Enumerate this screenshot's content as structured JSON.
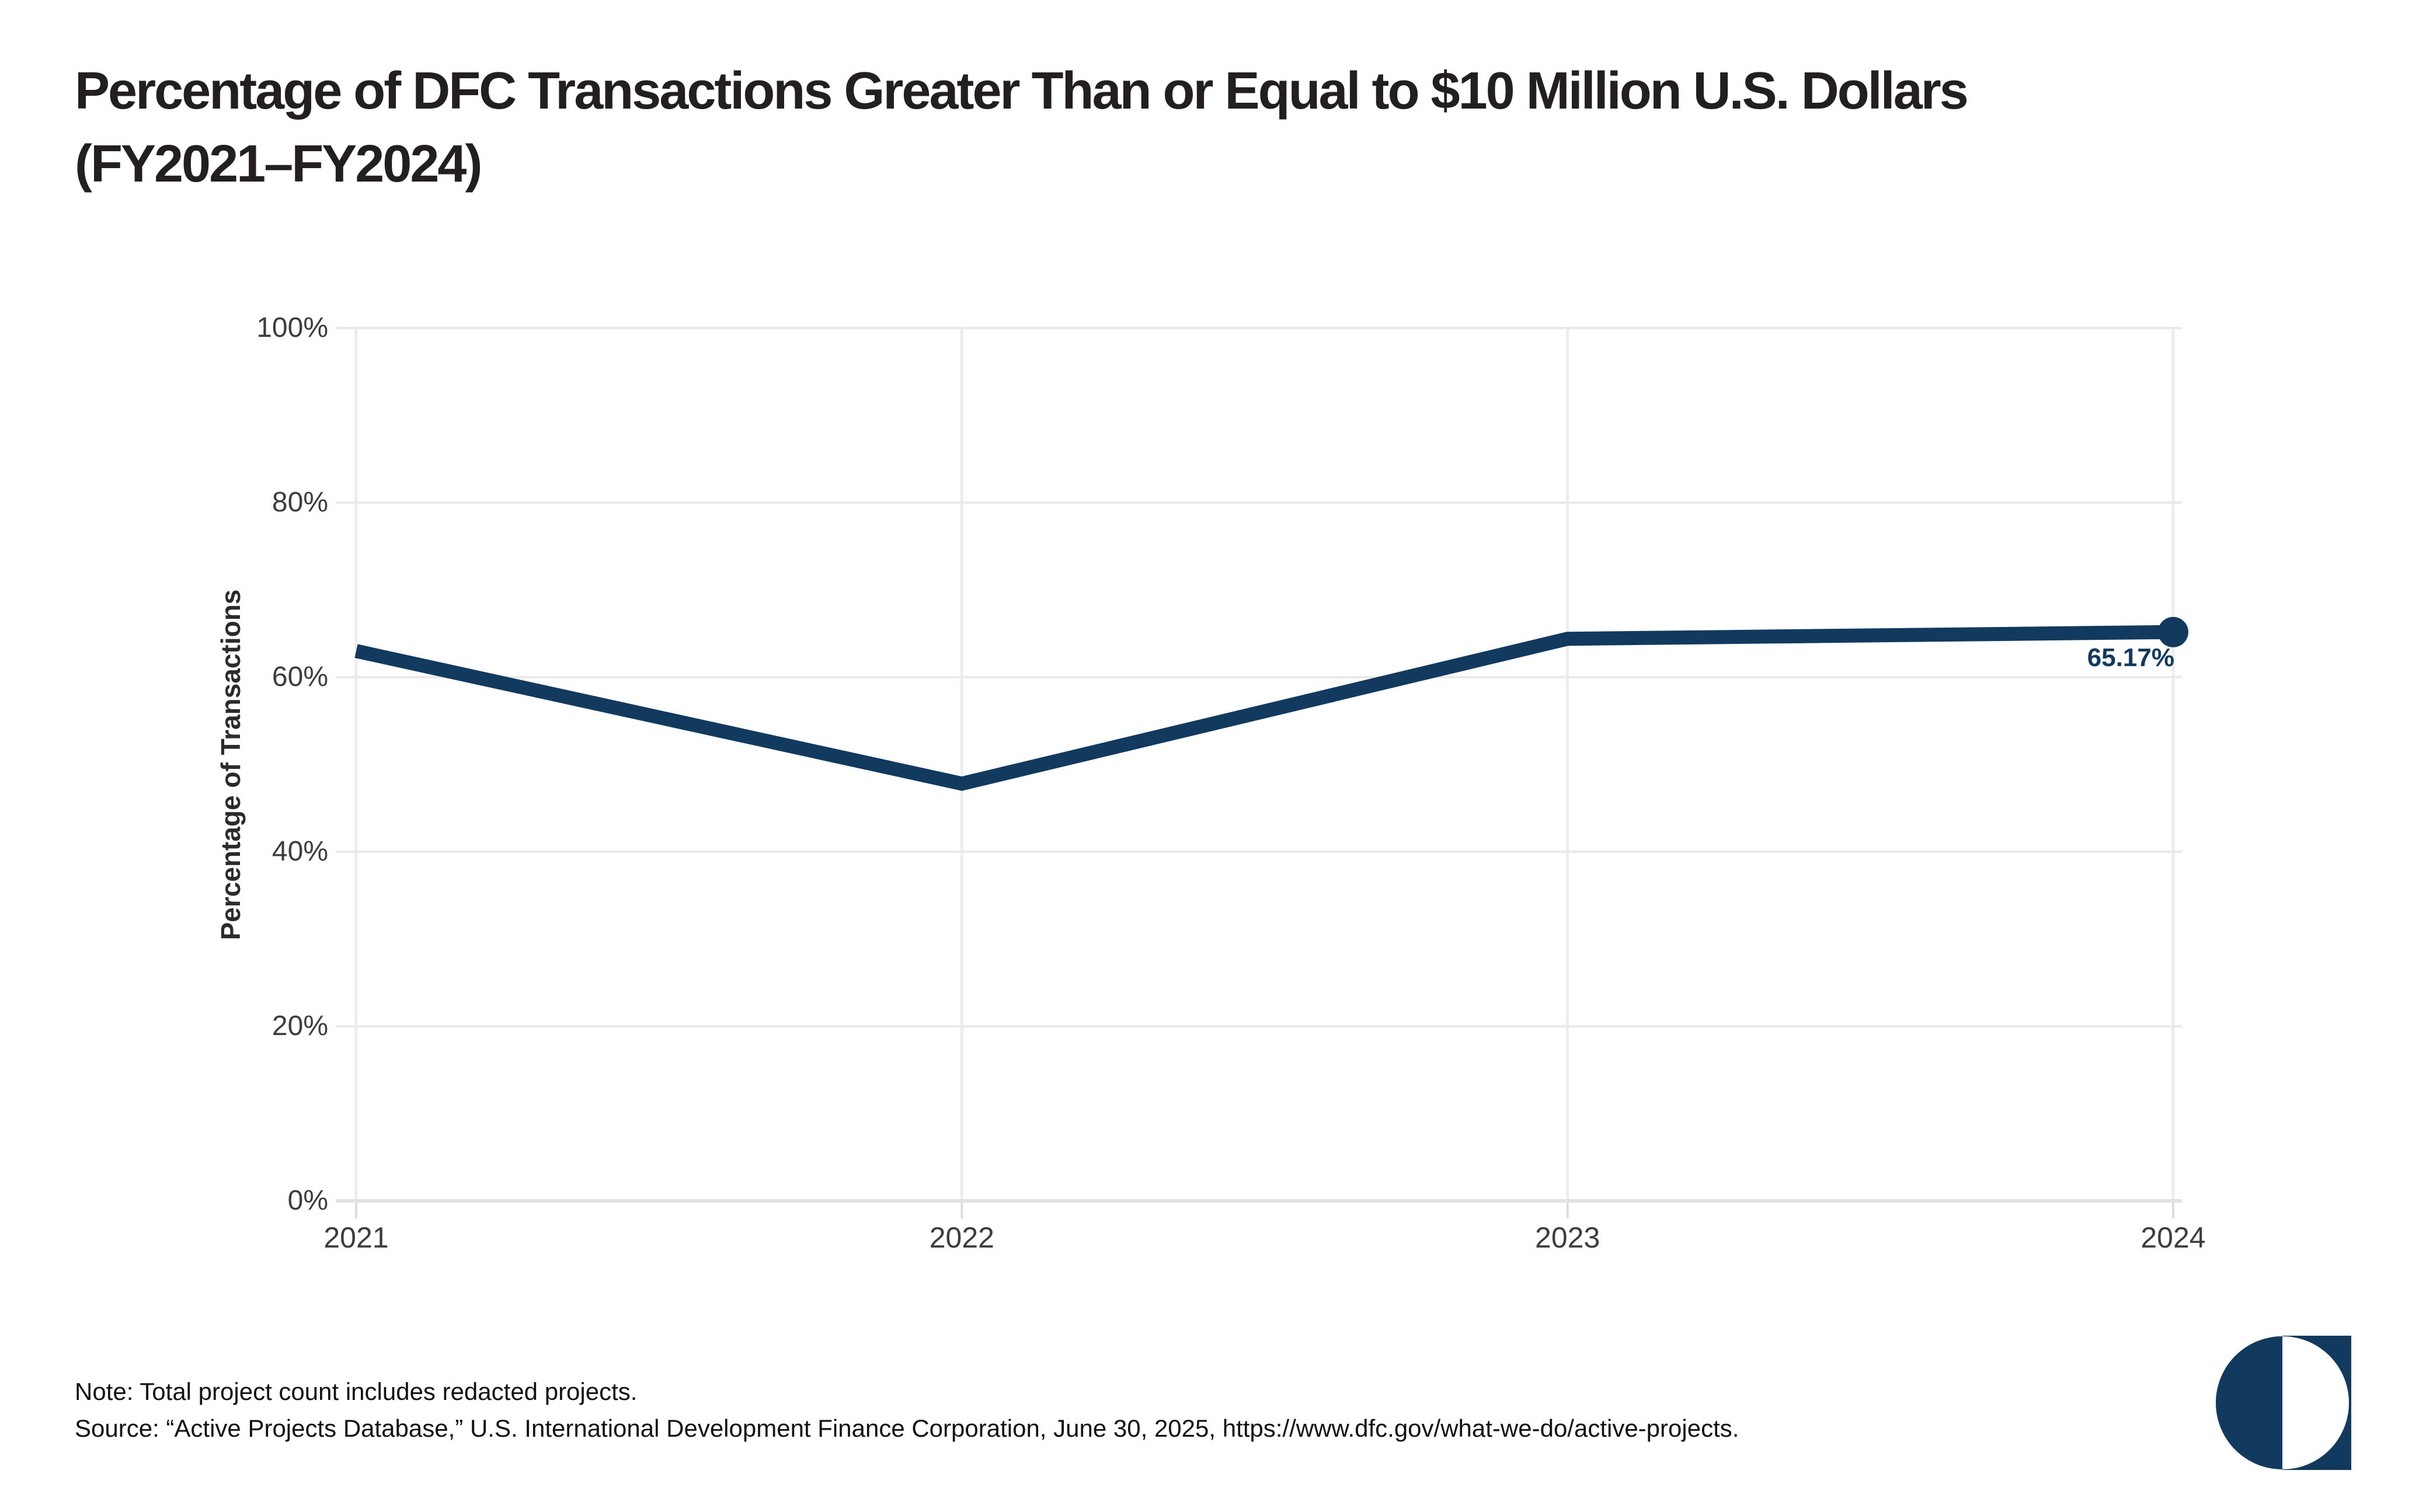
{
  "header": {
    "title_line1": "Percentage of DFC Transactions Greater Than or Equal to $10 Million U.S. Dollars",
    "title_line2": "(FY2021–FY2024)"
  },
  "chart_data": {
    "type": "line",
    "title": "Percentage of DFC Transactions Greater Than or Equal to $10 Million U.S. Dollars (FY2021–FY2024)",
    "categories": [
      "2021",
      "2022",
      "2023",
      "2024"
    ],
    "values": [
      63.0,
      47.8,
      64.4,
      65.17
    ],
    "labeled_point": {
      "category": "2024",
      "value": 65.17
    },
    "end_label": "65.17%",
    "xlabel": "",
    "ylabel": "Percentage of Transactions",
    "ylim": [
      0,
      100
    ],
    "yticks": [
      0,
      20,
      40,
      60,
      80,
      100
    ],
    "ytick_labels": [
      "0%",
      "20%",
      "40%",
      "60%",
      "80%",
      "100%"
    ],
    "grid": "light horizontal and vertical gridlines",
    "legend_position": "none"
  },
  "footer": {
    "note_line1": "Note: Total project count includes redacted projects.",
    "note_line2": "Source: “Active Projects Database,” U.S. International Development Finance Corporation, June 30, 2025, https://www.dfc.gov/what-we-do/active-projects."
  },
  "colors": {
    "navy": "#123A5E",
    "line": "#123A5E",
    "title_text": "#231F20",
    "axis_text": "#3D3D3D",
    "grid_horizontal": "#EAEAEA",
    "grid_vertical": "#EDEDED",
    "axis_baseline": "#E2E2E2",
    "tick_stub": "#DCDCDC",
    "background": "#FFFFFF"
  }
}
